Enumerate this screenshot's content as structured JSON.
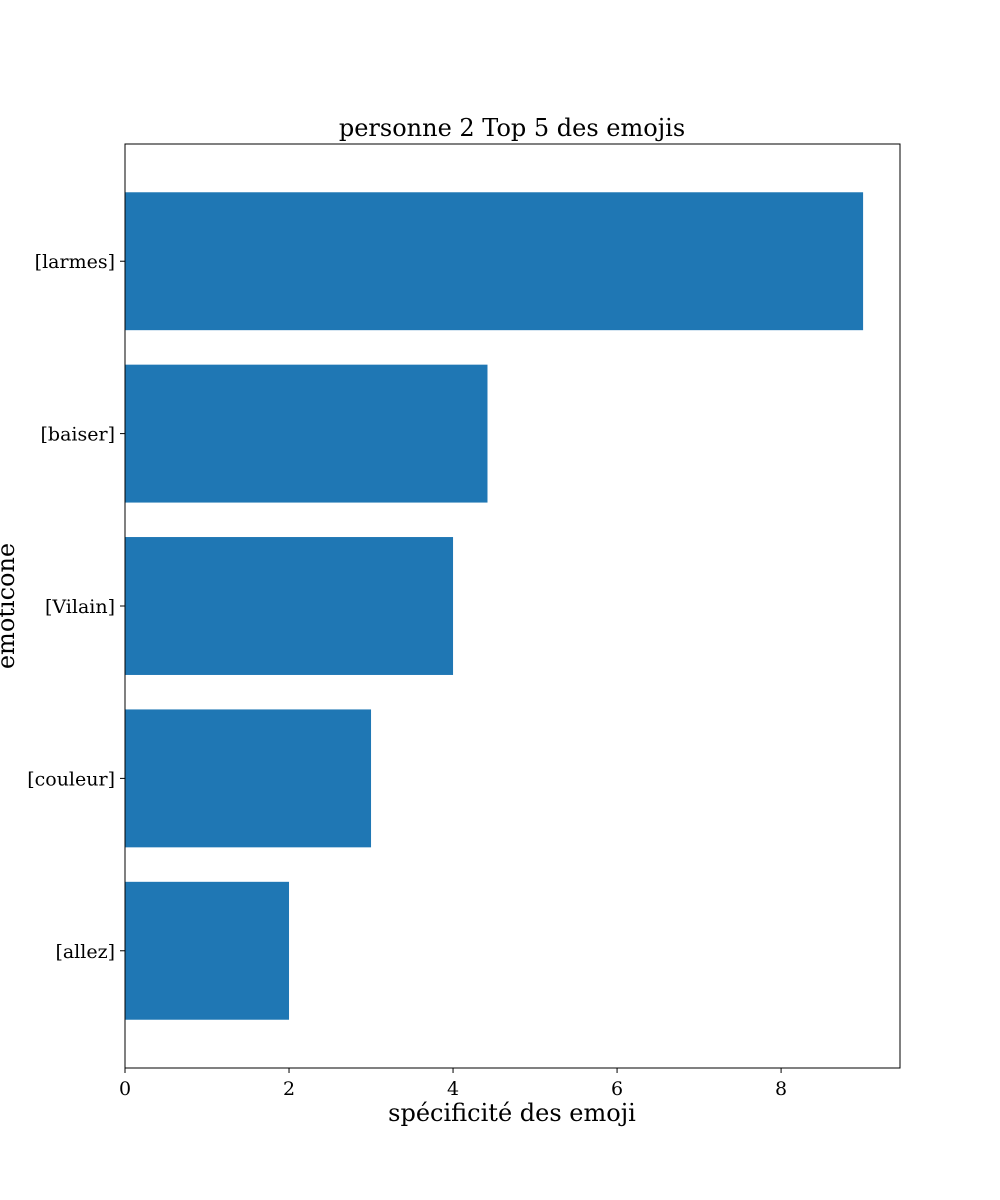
{
  "chart_data": {
    "type": "bar",
    "orientation": "horizontal",
    "title": "personne 2 Top 5 des emojis",
    "xlabel": "spécificité des emoji",
    "ylabel": "émoticône",
    "categories": [
      "[larmes]",
      "[baiser]",
      "[Vilain]",
      "[couleur]",
      "[allez]"
    ],
    "values": [
      9.0,
      4.42,
      4.0,
      3.0,
      2.0
    ],
    "xlim": [
      0,
      9.45
    ],
    "xticks": [
      "0",
      "2",
      "4",
      "6",
      "8"
    ],
    "grid": false,
    "legend": "none",
    "bar_color": "#1f77b4"
  }
}
